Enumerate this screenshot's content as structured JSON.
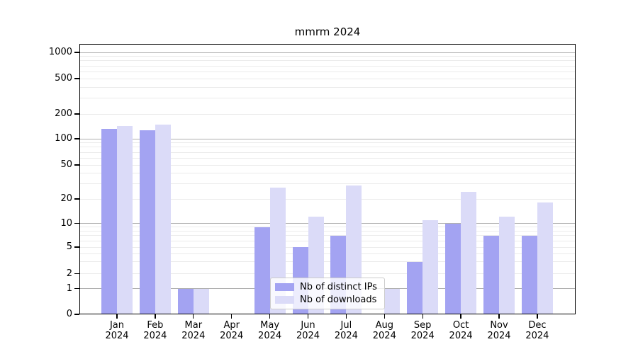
{
  "title": "mmrm 2024",
  "legend": {
    "items": [
      {
        "label": "Nb of distinct IPs",
        "color": "#a3a3f2"
      },
      {
        "label": "Nb of downloads",
        "color": "#dbdbf8"
      }
    ]
  },
  "axes": {
    "ytick_labels": [
      "0",
      "1",
      "2",
      "5",
      "10",
      "20",
      "50",
      "100",
      "200",
      "500",
      "1000"
    ],
    "xtick_year": "2024"
  },
  "chart_data": {
    "type": "bar",
    "title": "mmrm 2024",
    "categories": [
      "Jan 2024",
      "Feb 2024",
      "Mar 2024",
      "Apr 2024",
      "May 2024",
      "Jun 2024",
      "Jul 2024",
      "Aug 2024",
      "Sep 2024",
      "Oct 2024",
      "Nov 2024",
      "Dec 2024"
    ],
    "series": [
      {
        "name": "Nb of distinct IPs",
        "color": "#a3a3f2",
        "values": [
          131,
          127,
          1,
          0,
          9,
          5,
          7,
          0,
          3,
          10,
          7,
          7
        ]
      },
      {
        "name": "Nb of downloads",
        "color": "#dbdbf8",
        "values": [
          143,
          148,
          1,
          0,
          27,
          12,
          29,
          1,
          11,
          24,
          12,
          18
        ]
      }
    ],
    "ylabel": "",
    "xlabel": "",
    "yscale": "log (with 0 baseline, linear segment 0-1)",
    "ytick_values": [
      0,
      1,
      2,
      5,
      10,
      20,
      50,
      100,
      200,
      500,
      1000
    ],
    "ylim": [
      0,
      1400
    ],
    "grid": "horizontal major + log minor gridlines",
    "legend_position": "inside bottom-center",
    "bar_colors": {
      "Nb of distinct IPs": "#a3a3f2",
      "Nb of downloads": "#dbdbf8"
    }
  }
}
